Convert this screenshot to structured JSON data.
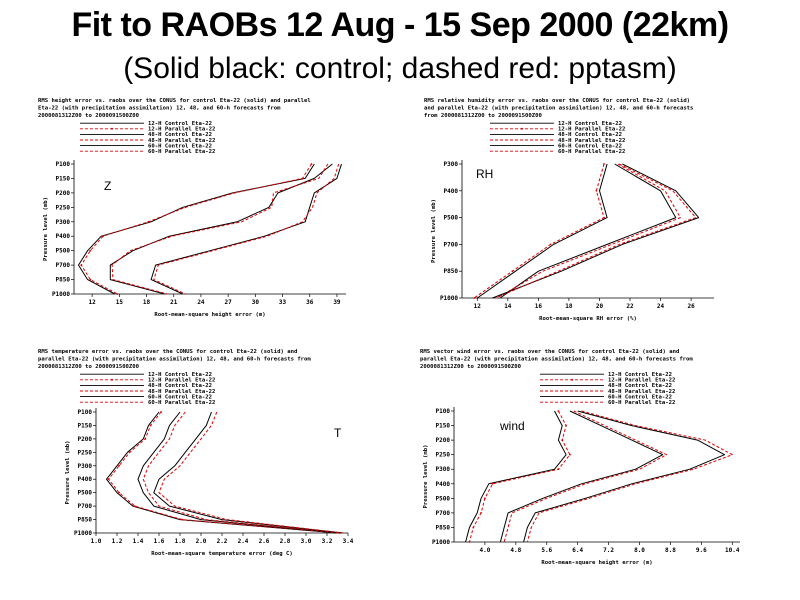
{
  "slide": {
    "title": "Fit to RAOBs 12 Aug - 15 Sep 2000 (22km)",
    "subtitle": "(Solid black: control; dashed red: pptasm)"
  },
  "chart_data": [
    {
      "id": "z",
      "type": "line",
      "tag": "Z",
      "title_lines": [
        "RMS height error vs. raobs over the CONUS for control Eta-22 (solid) and parallel",
        "Eta-22 (with precipitation assimilation) 12, 48, and 60-h forecasts from",
        "2000081312Z00 to 2000091500Z00"
      ],
      "legend": [
        "12-H Control Eta-22",
        "12-H Parallel Eta-22",
        "48-H Control Eta-22",
        "48-H Parallel Eta-22",
        "60-H Control Eta-22",
        "60-H Parallel Eta-22"
      ],
      "xlabel": "Root-mean-square height error (m)",
      "ylabel": "Pressure level (mb)",
      "xlim": [
        10,
        40
      ],
      "xticks": [
        12,
        15,
        18,
        21,
        24,
        27,
        30,
        33,
        36,
        39
      ],
      "levels": [
        100,
        150,
        200,
        250,
        300,
        400,
        500,
        700,
        850,
        1000
      ],
      "ylabels": [
        "P100",
        "P150",
        "P200",
        "P250",
        "P300",
        "P400",
        "P500",
        "P700",
        "P850",
        "P1000"
      ],
      "series": [
        {
          "values": [
            36.5,
            35.5,
            27.5,
            22.0,
            18.5,
            13.0,
            11.5,
            10.5,
            11.5,
            14.5
          ]
        },
        {
          "values": [
            36.2,
            35.2,
            27.7,
            22.3,
            18.2,
            13.2,
            11.8,
            10.8,
            11.8,
            14.8
          ]
        },
        {
          "values": [
            38.5,
            36.5,
            32.5,
            31.5,
            28.0,
            20.5,
            16.5,
            14.0,
            14.0,
            20.0
          ]
        },
        {
          "values": [
            38.0,
            37.0,
            32.0,
            31.8,
            28.5,
            20.8,
            16.2,
            14.2,
            14.3,
            20.3
          ]
        },
        {
          "values": [
            39.5,
            39.0,
            36.5,
            36.0,
            35.5,
            31.0,
            25.0,
            19.0,
            18.5,
            22.0
          ]
        },
        {
          "values": [
            39.2,
            38.7,
            36.8,
            36.3,
            35.2,
            31.3,
            25.3,
            19.3,
            18.8,
            22.3
          ]
        }
      ]
    },
    {
      "id": "rh",
      "type": "line",
      "tag": "RH",
      "title_lines": [
        "RMS relative humidity error vs. raobs over the CONUS for control Eta-22 (solid)",
        "and parallel Eta-22 (with precipitation assimilation) 12, 48, and 60-h forecasts",
        "from 2000081312Z00 to 2000091500Z00"
      ],
      "legend": [
        "12-H Control Eta-22",
        "12-H Parallel Eta-22",
        "48-H Control Eta-22",
        "48-H Parallel Eta-22",
        "60-H Control Eta-22",
        "60-H Parallel Eta-22"
      ],
      "xlabel": "Root-mean-square RH error (%)",
      "ylabel": "Pressure level (mb)",
      "xlim": [
        11,
        27.5
      ],
      "xticks": [
        12,
        14,
        16,
        18,
        20,
        22,
        24,
        26
      ],
      "levels": [
        300,
        400,
        500,
        700,
        850,
        1000
      ],
      "ylabels": [
        "P300",
        "P400",
        "P500",
        "P700",
        "P850",
        "P1000"
      ],
      "series": [
        {
          "values": [
            20.5,
            20.0,
            20.5,
            17.0,
            14.5,
            12.0
          ]
        },
        {
          "values": [
            20.3,
            19.8,
            20.3,
            16.8,
            14.3,
            11.8
          ]
        },
        {
          "values": [
            21.0,
            24.0,
            25.0,
            20.5,
            16.0,
            13.5
          ]
        },
        {
          "values": [
            21.2,
            24.3,
            25.3,
            20.8,
            16.3,
            13.3
          ]
        },
        {
          "values": [
            21.5,
            25.0,
            26.5,
            21.5,
            17.5,
            13.0
          ]
        },
        {
          "values": [
            21.3,
            24.8,
            26.3,
            21.3,
            17.3,
            13.2
          ]
        }
      ]
    },
    {
      "id": "t",
      "type": "line",
      "tag": "T",
      "title_lines": [
        "RMS temperature error vs. raobs over the CONUS for control Eta-22 (solid) and",
        "parallel Eta-22 (with precipitation assimilation) 12, 48, and 60-h forecasts from",
        "2000081312Z00 to 2000091500Z00"
      ],
      "legend": [
        "12-H Control Eta-22",
        "12-H Parallel Eta-22",
        "48-H Control Eta-22",
        "48-H Parallel Eta-22",
        "60-H Control Eta-22",
        "60-H Parallel Eta-22"
      ],
      "xlabel": "Root-mean-square temperature error (deg C)",
      "ylabel": "Pressure level (mb)",
      "xlim": [
        1.0,
        3.4
      ],
      "xticks": [
        1.0,
        1.2,
        1.4,
        1.6,
        1.8,
        2.0,
        2.2,
        2.4,
        2.6,
        2.8,
        3.0,
        3.2,
        3.4
      ],
      "xtick_labels": [
        "1.0",
        "1.2",
        "1.4",
        "1.6",
        "1.8",
        "2.0",
        "2.2",
        "2.4",
        "2.6",
        "2.8",
        "3.0",
        "3.2",
        "3.4"
      ],
      "levels": [
        100,
        150,
        200,
        250,
        300,
        400,
        500,
        700,
        850,
        1000
      ],
      "ylabels": [
        "P100",
        "P150",
        "P200",
        "P250",
        "P300",
        "P400",
        "P500",
        "P700",
        "P850",
        "P1000"
      ],
      "series": [
        {
          "values": [
            1.6,
            1.5,
            1.45,
            1.3,
            1.2,
            1.1,
            1.2,
            1.35,
            1.8,
            3.3
          ]
        },
        {
          "values": [
            1.62,
            1.52,
            1.47,
            1.32,
            1.22,
            1.12,
            1.22,
            1.37,
            1.82,
            3.32
          ]
        },
        {
          "values": [
            1.8,
            1.7,
            1.65,
            1.55,
            1.45,
            1.4,
            1.45,
            1.55,
            2.0,
            3.3
          ]
        },
        {
          "values": [
            1.85,
            1.75,
            1.7,
            1.6,
            1.5,
            1.45,
            1.5,
            1.6,
            2.05,
            3.32
          ]
        },
        {
          "values": [
            2.1,
            2.05,
            1.95,
            1.85,
            1.75,
            1.6,
            1.55,
            1.7,
            2.2,
            3.35
          ]
        },
        {
          "values": [
            2.15,
            2.1,
            2.0,
            1.9,
            1.8,
            1.65,
            1.6,
            1.75,
            2.25,
            3.36
          ]
        }
      ]
    },
    {
      "id": "wind",
      "type": "line",
      "tag": "wind",
      "title_lines": [
        "RMS vector wind error vs. raobs over the CONUS for control Eta-22 (solid) and",
        "parallel Eta-22 (with precipitation assimilation) 12, 48, and 60-h forecasts from",
        "2000081312Z00 to 2000091500Z00"
      ],
      "legend": [
        "12-H Control Eta-22",
        "12-H Parallel Eta-22",
        "48-H Control Eta-22",
        "48-H Parallel Eta-22",
        "60-H Control Eta-22",
        "60-H Parallel Eta-22"
      ],
      "xlabel": "Root-mean-square height error (m)",
      "ylabel": "Pressure level (mb)",
      "xlim": [
        3.2,
        10.6
      ],
      "xticks": [
        4.0,
        4.8,
        5.6,
        6.4,
        7.2,
        8.0,
        8.8,
        9.6,
        10.4
      ],
      "xtick_labels": [
        "4.0",
        "4.8",
        "5.6",
        "6.4",
        "7.2",
        "8.0",
        "8.8",
        "9.6",
        "10.4"
      ],
      "levels": [
        100,
        150,
        200,
        250,
        300,
        400,
        500,
        700,
        850,
        1000
      ],
      "ylabels": [
        "P100",
        "P150",
        "P200",
        "P250",
        "P300",
        "P400",
        "P500",
        "P700",
        "P850",
        "P1000"
      ],
      "series": [
        {
          "values": [
            5.8,
            6.0,
            5.9,
            6.1,
            5.8,
            4.1,
            3.9,
            3.8,
            3.6,
            3.5
          ]
        },
        {
          "values": [
            5.9,
            6.1,
            6.0,
            6.2,
            5.9,
            4.2,
            4.0,
            3.9,
            3.7,
            3.6
          ]
        },
        {
          "values": [
            6.2,
            7.0,
            7.8,
            8.6,
            7.9,
            6.5,
            5.5,
            4.6,
            4.5,
            4.4
          ]
        },
        {
          "values": [
            6.3,
            7.1,
            7.9,
            8.7,
            8.0,
            6.6,
            5.6,
            4.7,
            4.6,
            4.5
          ]
        },
        {
          "values": [
            6.4,
            7.8,
            9.5,
            10.2,
            9.3,
            7.8,
            6.6,
            5.3,
            5.1,
            5.0
          ]
        },
        {
          "values": [
            6.5,
            7.9,
            9.7,
            10.4,
            9.4,
            7.9,
            6.7,
            5.4,
            5.2,
            5.1
          ]
        }
      ]
    }
  ]
}
